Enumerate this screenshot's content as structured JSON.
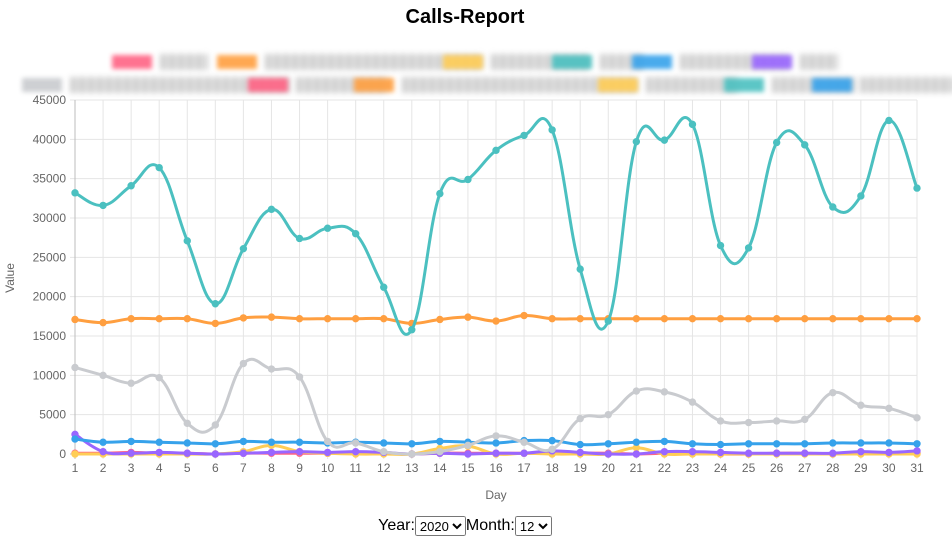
{
  "page_title": "Calls-Report",
  "controls": {
    "year_label": "Year:",
    "year_value": "2020",
    "month_label": "Month:",
    "month_value": "12"
  },
  "chart_data": {
    "type": "line",
    "title": "Calls-Report",
    "xlabel": "Day",
    "ylabel": "Value",
    "ylim": [
      0,
      45000
    ],
    "ytick_step": 5000,
    "grid": true,
    "legend_position": "top",
    "legend_note": "legend labels are blurred/illegible in the screenshot",
    "x": [
      1,
      2,
      3,
      4,
      5,
      6,
      7,
      8,
      9,
      10,
      11,
      12,
      13,
      14,
      15,
      16,
      17,
      18,
      19,
      20,
      21,
      22,
      23,
      24,
      25,
      26,
      27,
      28,
      29,
      30,
      31
    ],
    "legend": [
      {
        "color": "#ff6384",
        "row": 1
      },
      {
        "color": "#ff9f40",
        "row": 1
      },
      {
        "color": "#ffcd56",
        "row": 1
      },
      {
        "color": "#4bc0c0",
        "row": 1
      },
      {
        "color": "#36a2eb",
        "row": 1
      },
      {
        "color": "#9966ff",
        "row": 1
      },
      {
        "color": "#c9cbcf",
        "row": 2
      },
      {
        "color": "#ff6384",
        "row": 2
      },
      {
        "color": "#ff9f40",
        "row": 2
      },
      {
        "color": "#ffcd56",
        "row": 2
      },
      {
        "color": "#4bc0c0",
        "row": 2
      },
      {
        "color": "#36a2eb",
        "row": 2
      }
    ],
    "series": [
      {
        "color": "#4bc0c0",
        "values": [
          33200,
          31600,
          34100,
          36400,
          27100,
          19100,
          26100,
          31100,
          27400,
          28700,
          28000,
          21200,
          15800,
          33100,
          34900,
          38600,
          40500,
          41200,
          23500,
          16900,
          39700,
          39900,
          41900,
          26500,
          26200,
          39600,
          39300,
          31400,
          32800,
          42400,
          33800
        ]
      },
      {
        "color": "#ff9f40",
        "values": [
          17100,
          16700,
          17200,
          17200,
          17200,
          16600,
          17300,
          17400,
          17200,
          17200,
          17200,
          17200,
          16600,
          17100,
          17400,
          16900,
          17600,
          17200,
          17200,
          17200,
          17200,
          17200,
          17200,
          17200,
          17200,
          17200,
          17200,
          17200,
          17200,
          17200,
          17200
        ]
      },
      {
        "color": "#c9cbcf",
        "values": [
          11000,
          10000,
          9000,
          9700,
          3900,
          3700,
          11500,
          10800,
          9800,
          1600,
          1400,
          300,
          0,
          300,
          1100,
          2300,
          1500,
          600,
          4500,
          5000,
          8000,
          7900,
          6600,
          4200,
          4000,
          4200,
          4400,
          7800,
          6200,
          5800,
          4600
        ]
      },
      {
        "color": "#36a2eb",
        "values": [
          1900,
          1500,
          1600,
          1500,
          1400,
          1300,
          1600,
          1500,
          1500,
          1400,
          1500,
          1400,
          1300,
          1600,
          1500,
          1400,
          1700,
          1700,
          1200,
          1300,
          1500,
          1600,
          1300,
          1200,
          1300,
          1300,
          1300,
          1400,
          1400,
          1400,
          1300
        ]
      },
      {
        "color": "#9966ff",
        "values": [
          2500,
          300,
          100,
          200,
          100,
          0,
          100,
          200,
          300,
          200,
          300,
          200,
          0,
          100,
          0,
          100,
          100,
          400,
          200,
          0,
          0,
          300,
          300,
          200,
          100,
          100,
          100,
          100,
          300,
          200,
          400
        ]
      },
      {
        "color": "#ffcd56",
        "values": [
          0,
          0,
          0,
          0,
          0,
          0,
          300,
          1100,
          300,
          100,
          0,
          0,
          0,
          700,
          1000,
          0,
          100,
          0,
          0,
          0,
          800,
          0,
          0,
          0,
          0,
          0,
          0,
          0,
          0,
          0,
          0
        ]
      },
      {
        "color": "#ff6384",
        "values": [
          100,
          100,
          200,
          100,
          100,
          0,
          100,
          100,
          100,
          100,
          200,
          100,
          0,
          100,
          100,
          100,
          100,
          100,
          100,
          100,
          0,
          100,
          100,
          0,
          0,
          100,
          100,
          0,
          100,
          100,
          100
        ]
      }
    ]
  }
}
